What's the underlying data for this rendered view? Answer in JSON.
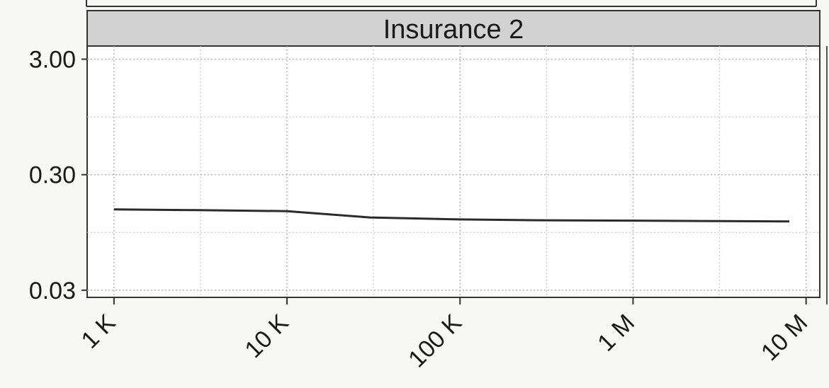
{
  "chart_data": {
    "type": "line",
    "panel_title": "Insurance 2",
    "x_scale": "log",
    "y_scale": "log",
    "x_ticks": [
      {
        "value": 1000,
        "label": "1 K"
      },
      {
        "value": 10000,
        "label": "10 K"
      },
      {
        "value": 100000,
        "label": "100 K"
      },
      {
        "value": 1000000,
        "label": "1 M"
      },
      {
        "value": 10000000,
        "label": "10 M"
      }
    ],
    "y_ticks": [
      {
        "value": 0.03,
        "label": "0.03"
      },
      {
        "value": 0.3,
        "label": "0.30"
      },
      {
        "value": 3,
        "label": "3.00"
      }
    ],
    "xlim": [
      700,
      12000000
    ],
    "ylim": [
      0.026,
      3.9
    ],
    "grid": true,
    "series": [
      {
        "color": "#2b2b2b",
        "x": [
          1000,
          3000,
          10000,
          30000,
          100000,
          300000,
          1000000,
          3000000,
          8000000
        ],
        "y": [
          0.15,
          0.148,
          0.145,
          0.128,
          0.123,
          0.121,
          0.12,
          0.119,
          0.118
        ]
      }
    ]
  },
  "colors": {
    "panel_strip": "#d2d2d2",
    "plot_background": "#ffffff",
    "grid": "#b5b5b5",
    "frame": "#333333"
  }
}
